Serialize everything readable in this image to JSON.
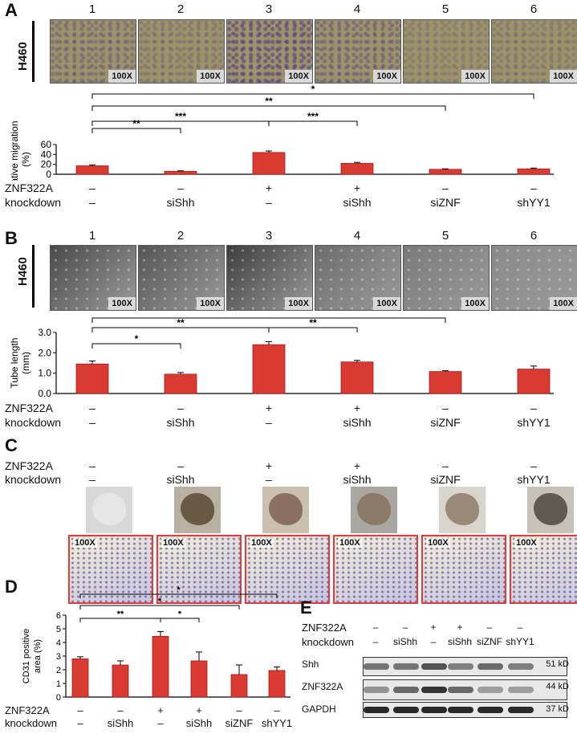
{
  "panels": {
    "A": "A",
    "B": "B",
    "C": "C",
    "D": "D",
    "E": "E"
  },
  "cell_line": "H460",
  "magnification": "100X",
  "lane_numbers": [
    "1",
    "2",
    "3",
    "4",
    "5",
    "6"
  ],
  "row_labels": {
    "znf": "ZNF322A",
    "kd": "knockdown"
  },
  "znf_status": [
    "–",
    "–",
    "+",
    "+",
    "–",
    "–"
  ],
  "knockdown": [
    "–",
    "siShh",
    "–",
    "siShh",
    "siZNF",
    "shYY1"
  ],
  "blot": {
    "proteins": [
      "Shh",
      "ZNF322A",
      "GAPDH"
    ],
    "sizes": [
      "51 kD",
      "44 kD",
      "37 kD"
    ]
  },
  "chart_data": [
    {
      "panel": "A",
      "type": "bar",
      "categories": [
        "1",
        "2",
        "3",
        "4",
        "5",
        "6"
      ],
      "values": [
        17,
        6,
        44,
        22,
        10,
        11
      ],
      "errors": [
        2,
        1,
        3,
        2,
        1,
        1.5
      ],
      "ylabel": "Relative migration (%)",
      "ylim": [
        0,
        60
      ],
      "yticks": [
        "0",
        "20",
        "40",
        "60"
      ],
      "significance": [
        {
          "from": 1,
          "to": 2,
          "label": "**"
        },
        {
          "from": 1,
          "to": 3,
          "label": "***"
        },
        {
          "from": 3,
          "to": 4,
          "label": "***"
        },
        {
          "from": 1,
          "to": 5,
          "label": "**"
        },
        {
          "from": 1,
          "to": 6,
          "label": "*"
        }
      ]
    },
    {
      "panel": "B",
      "type": "bar",
      "categories": [
        "1",
        "2",
        "3",
        "4",
        "5",
        "6"
      ],
      "values": [
        1.45,
        0.95,
        2.4,
        1.55,
        1.08,
        1.2
      ],
      "errors": [
        0.15,
        0.08,
        0.15,
        0.08,
        0.04,
        0.15
      ],
      "ylabel": "Tube length (mm)",
      "ylim": [
        0,
        3.0
      ],
      "yticks": [
        "0.0",
        "1.0",
        "2.0",
        "3.0"
      ],
      "significance": [
        {
          "from": 1,
          "to": 2,
          "label": "*"
        },
        {
          "from": 1,
          "to": 3,
          "label": "**"
        },
        {
          "from": 3,
          "to": 4,
          "label": "**"
        },
        {
          "from": 1,
          "to": 5,
          "label": "*"
        }
      ]
    },
    {
      "panel": "D",
      "type": "bar",
      "categories": [
        "1",
        "2",
        "3",
        "4",
        "5",
        "6"
      ],
      "values": [
        2.8,
        2.35,
        4.45,
        2.65,
        1.65,
        1.95
      ],
      "errors": [
        0.15,
        0.3,
        0.35,
        0.65,
        0.7,
        0.25
      ],
      "ylabel": "CD31 positive area (%)",
      "ylim": [
        0,
        6
      ],
      "yticks": [
        "0",
        "1",
        "2",
        "3",
        "4",
        "5",
        "6"
      ],
      "significance": [
        {
          "from": 1,
          "to": 3,
          "label": "**"
        },
        {
          "from": 3,
          "to": 4,
          "label": "*"
        },
        {
          "from": 1,
          "to": 5,
          "label": "*"
        },
        {
          "from": 1,
          "to": 6,
          "label": "*"
        }
      ]
    }
  ],
  "colors": {
    "bar": "#d93a32",
    "bar_dark": "#a01c18",
    "tissue_border": "#e23a3a"
  }
}
